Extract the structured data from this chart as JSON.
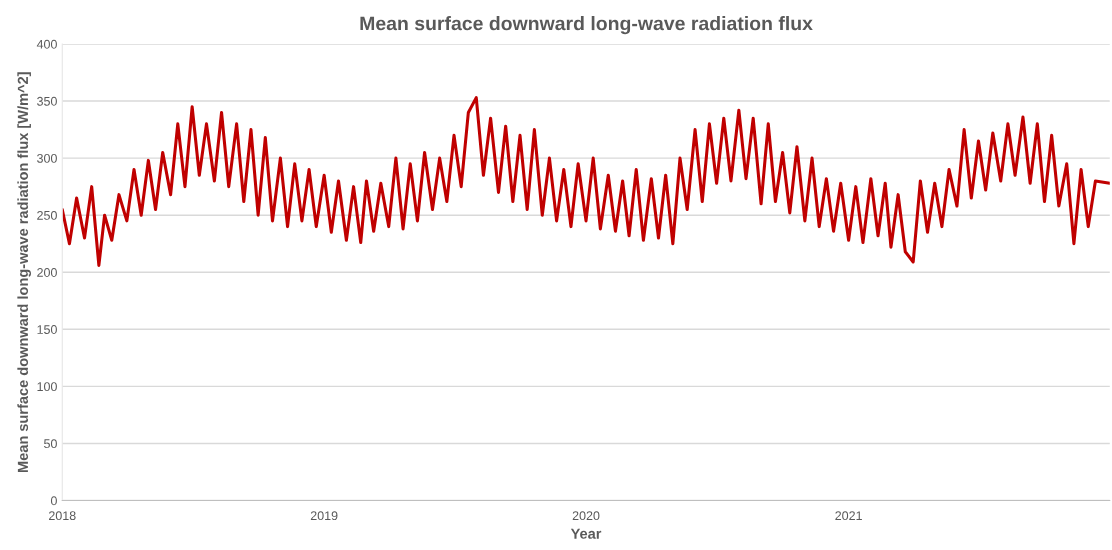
{
  "chart_data": {
    "type": "line",
    "title": "Mean surface downward long-wave radiation flux",
    "xlabel": "Year",
    "ylabel": "Mean surface downward long-wave radiation flux [W/m^2]",
    "x": [
      "2018-01-01",
      "2018-01-11",
      "2018-01-21",
      "2018-02-01",
      "2018-02-11",
      "2018-02-21",
      "2018-03-01",
      "2018-03-11",
      "2018-03-21",
      "2018-04-01",
      "2018-04-11",
      "2018-04-21",
      "2018-05-01",
      "2018-05-11",
      "2018-05-21",
      "2018-06-01",
      "2018-06-11",
      "2018-06-21",
      "2018-07-01",
      "2018-07-11",
      "2018-07-21",
      "2018-08-01",
      "2018-08-11",
      "2018-08-21",
      "2018-09-01",
      "2018-09-11",
      "2018-09-21",
      "2018-10-01",
      "2018-10-11",
      "2018-10-21",
      "2018-11-01",
      "2018-11-11",
      "2018-11-21",
      "2018-12-01",
      "2018-12-11",
      "2018-12-21",
      "2019-01-01",
      "2019-01-11",
      "2019-01-21",
      "2019-02-01",
      "2019-02-11",
      "2019-02-21",
      "2019-03-01",
      "2019-03-11",
      "2019-03-21",
      "2019-04-01",
      "2019-04-11",
      "2019-04-21",
      "2019-05-01",
      "2019-05-11",
      "2019-05-21",
      "2019-06-01",
      "2019-06-11",
      "2019-06-21",
      "2019-07-01",
      "2019-07-11",
      "2019-07-21",
      "2019-08-01",
      "2019-08-11",
      "2019-08-21",
      "2019-09-01",
      "2019-09-11",
      "2019-09-21",
      "2019-10-01",
      "2019-10-11",
      "2019-10-21",
      "2019-11-01",
      "2019-11-11",
      "2019-11-21",
      "2019-12-01",
      "2019-12-11",
      "2019-12-21",
      "2020-01-01",
      "2020-01-11",
      "2020-01-21",
      "2020-02-01",
      "2020-02-11",
      "2020-02-21",
      "2020-03-01",
      "2020-03-11",
      "2020-03-21",
      "2020-04-01",
      "2020-04-11",
      "2020-04-21",
      "2020-05-01",
      "2020-05-11",
      "2020-05-21",
      "2020-06-01",
      "2020-06-11",
      "2020-06-21",
      "2020-07-01",
      "2020-07-11",
      "2020-07-21",
      "2020-08-01",
      "2020-08-11",
      "2020-08-21",
      "2020-09-01",
      "2020-09-11",
      "2020-09-21",
      "2020-10-01",
      "2020-10-11",
      "2020-10-21",
      "2020-11-01",
      "2020-11-11",
      "2020-11-21",
      "2020-12-01",
      "2020-12-11",
      "2020-12-21",
      "2021-01-01",
      "2021-01-11",
      "2021-01-21",
      "2021-02-01",
      "2021-02-11",
      "2021-02-21",
      "2021-03-01",
      "2021-03-11",
      "2021-03-21",
      "2021-04-01",
      "2021-04-11",
      "2021-04-21",
      "2021-05-01",
      "2021-05-11",
      "2021-05-21",
      "2021-06-01",
      "2021-06-11",
      "2021-06-21",
      "2021-07-01",
      "2021-07-11",
      "2021-07-21",
      "2021-08-01",
      "2021-08-11",
      "2021-08-21",
      "2021-09-01",
      "2021-09-11",
      "2021-09-21",
      "2021-10-01",
      "2021-10-11",
      "2021-10-21",
      "2021-11-01",
      "2021-11-11",
      "2021-11-21",
      "2021-12-01",
      "2021-12-11",
      "2021-12-31"
    ],
    "series": [
      {
        "color": "#c00000",
        "values": [
          255,
          225,
          265,
          230,
          275,
          206,
          250,
          228,
          268,
          245,
          290,
          250,
          298,
          255,
          305,
          268,
          330,
          275,
          345,
          285,
          330,
          280,
          340,
          275,
          330,
          262,
          325,
          250,
          318,
          245,
          300,
          240,
          295,
          245,
          290,
          240,
          285,
          235,
          280,
          228,
          275,
          226,
          280,
          236,
          278,
          240,
          300,
          238,
          295,
          245,
          305,
          255,
          300,
          262,
          320,
          275,
          340,
          353,
          285,
          335,
          270,
          328,
          262,
          320,
          255,
          325,
          250,
          300,
          245,
          290,
          240,
          295,
          245,
          300,
          238,
          285,
          236,
          280,
          232,
          290,
          228,
          282,
          230,
          285,
          225,
          300,
          255,
          325,
          262,
          330,
          278,
          335,
          280,
          342,
          282,
          335,
          260,
          330,
          262,
          305,
          252,
          310,
          245,
          300,
          240,
          282,
          236,
          278,
          228,
          275,
          226,
          282,
          232,
          278,
          222,
          268,
          218,
          209,
          280,
          235,
          278,
          240,
          290,
          258,
          325,
          265,
          315,
          272,
          322,
          280,
          330,
          285,
          336,
          278,
          330,
          262,
          320,
          258,
          295,
          225,
          290,
          240,
          280,
          278
        ]
      }
    ],
    "xlim": [
      "2018-01-01",
      "2021-12-31"
    ],
    "xticks": [
      {
        "value": "2018-01-01",
        "label": "2018"
      },
      {
        "value": "2019-01-01",
        "label": "2019"
      },
      {
        "value": "2020-01-01",
        "label": "2020"
      },
      {
        "value": "2021-01-01",
        "label": "2021"
      }
    ],
    "ylim": [
      0,
      400
    ],
    "yticks": [
      0,
      50,
      100,
      150,
      200,
      250,
      300,
      350,
      400
    ],
    "grid": "y",
    "line_style": "solid"
  }
}
